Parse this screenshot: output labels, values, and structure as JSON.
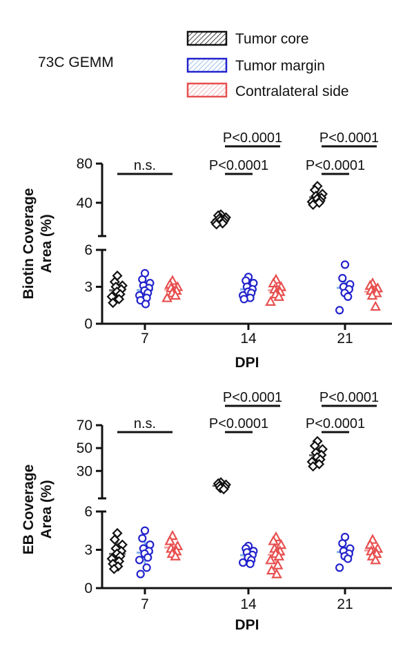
{
  "header": {
    "model_label": "73C GEMM"
  },
  "colors": {
    "core": "#111111",
    "margin": "#2222cc",
    "margin_bar": "#7fb0e6",
    "contra": "#e84f4f"
  },
  "legend": [
    {
      "name": "Tumor core",
      "color": "#111111"
    },
    {
      "name": "Tumor margin",
      "color": "#2222cc"
    },
    {
      "name": "Contralateral side",
      "color": "#e84f4f"
    }
  ],
  "chart_data": [
    {
      "type": "scatter",
      "title": "",
      "ylabel_lines": [
        "Biotin Coverage",
        "Area (%)"
      ],
      "xlabel": "DPI",
      "categories": [
        "7",
        "14",
        "21"
      ],
      "broken_axis": {
        "lower_range": [
          0,
          6
        ],
        "upper_range": [
          6,
          80
        ]
      },
      "lower_ticks": [
        "0",
        "3",
        "6"
      ],
      "upper_ticks": [
        "40",
        "80"
      ],
      "series": [
        {
          "name": "Tumor core",
          "marker": "diamond",
          "values": [
            [
              3.9,
              3.4,
              3.1,
              3.0,
              2.8,
              2.6,
              2.4,
              2.2,
              2.0,
              1.7
            ],
            [
              28,
              27,
              25,
              24,
              23,
              22,
              21,
              20,
              19,
              18
            ],
            [
              57,
              53,
              49,
              47,
              45,
              44,
              42,
              41,
              40,
              38
            ]
          ]
        },
        {
          "name": "Tumor margin",
          "marker": "circle",
          "values": [
            [
              4.1,
              3.6,
              3.3,
              3.1,
              2.9,
              2.7,
              2.5,
              2.3,
              2.1,
              1.9,
              1.6
            ],
            [
              3.8,
              3.5,
              3.3,
              3.0,
              2.8,
              2.6,
              2.5,
              2.3,
              2.1,
              2.0
            ],
            [
              4.8,
              3.7,
              3.2,
              3.0,
              2.8,
              2.5,
              2.2,
              1.1
            ]
          ]
        },
        {
          "name": "Contralateral side",
          "marker": "triangle",
          "values": [
            [
              3.5,
              3.2,
              3.0,
              2.9,
              2.7,
              2.5,
              2.3,
              2.1
            ],
            [
              3.6,
              3.3,
              3.0,
              2.8,
              2.6,
              2.4,
              2.2,
              1.8
            ],
            [
              3.3,
              3.1,
              2.9,
              2.7,
              2.5,
              2.3,
              1.4
            ]
          ]
        }
      ],
      "annotations": [
        {
          "text": "n.s.",
          "dpi": "7",
          "from": "Tumor core",
          "to": "Contralateral side",
          "level": 1
        },
        {
          "text": "P<0.0001",
          "dpi": "14",
          "from": "Tumor core",
          "to": "Tumor margin",
          "level": 1
        },
        {
          "text": "P<0.0001",
          "dpi": "14",
          "from": "Tumor core",
          "to": "Contralateral side",
          "level": 2
        },
        {
          "text": "P<0.0001",
          "dpi": "21",
          "from": "Tumor core",
          "to": "Tumor margin",
          "level": 1
        },
        {
          "text": "P<0.0001",
          "dpi": "21",
          "from": "Tumor core",
          "to": "Contralateral side",
          "level": 2
        }
      ]
    },
    {
      "type": "scatter",
      "title": "",
      "ylabel_lines": [
        "EB Coverage",
        "Area (%)"
      ],
      "xlabel": "DPI",
      "categories": [
        "7",
        "14",
        "21"
      ],
      "broken_axis": {
        "lower_range": [
          0,
          6
        ],
        "upper_range": [
          6,
          70
        ]
      },
      "lower_ticks": [
        "0",
        "3",
        "6"
      ],
      "upper_ticks": [
        "30",
        "50",
        "70"
      ],
      "series": [
        {
          "name": "Tumor core",
          "marker": "diamond",
          "values": [
            [
              4.3,
              3.8,
              3.4,
              3.1,
              2.9,
              2.7,
              2.5,
              2.3,
              2.1,
              1.9,
              1.7,
              1.5
            ],
            [
              20,
              19,
              18,
              17,
              16,
              15,
              14
            ],
            [
              56,
              52,
              49,
              46,
              44,
              42,
              40,
              38,
              36,
              34
            ]
          ]
        },
        {
          "name": "Tumor margin",
          "marker": "circle",
          "values": [
            [
              4.5,
              3.9,
              3.4,
              3.1,
              2.9,
              2.7,
              2.4,
              2.2,
              1.6,
              1.1
            ],
            [
              3.3,
              3.1,
              2.9,
              2.8,
              2.6,
              2.4,
              2.2,
              2.0,
              1.9
            ],
            [
              4.0,
              3.5,
              3.1,
              2.9,
              2.7,
              2.5,
              2.3,
              1.6
            ]
          ]
        },
        {
          "name": "Contralateral side",
          "marker": "triangle",
          "values": [
            [
              4.1,
              3.7,
              3.3,
              3.1,
              2.9,
              2.7,
              2.5
            ],
            [
              4.0,
              3.7,
              3.4,
              3.1,
              2.9,
              2.7,
              2.5,
              2.2,
              1.8,
              1.4,
              1.1
            ],
            [
              3.8,
              3.4,
              3.1,
              2.9,
              2.7,
              2.5,
              2.2
            ]
          ]
        }
      ],
      "annotations": [
        {
          "text": "n.s.",
          "dpi": "7",
          "from": "Tumor core",
          "to": "Contralateral side",
          "level": 1
        },
        {
          "text": "P<0.0001",
          "dpi": "14",
          "from": "Tumor core",
          "to": "Tumor margin",
          "level": 1
        },
        {
          "text": "P<0.0001",
          "dpi": "14",
          "from": "Tumor core",
          "to": "Contralateral side",
          "level": 2
        },
        {
          "text": "P<0.0001",
          "dpi": "21",
          "from": "Tumor core",
          "to": "Tumor margin",
          "level": 1
        },
        {
          "text": "P<0.0001",
          "dpi": "21",
          "from": "Tumor core",
          "to": "Contralateral side",
          "level": 2
        }
      ]
    }
  ]
}
